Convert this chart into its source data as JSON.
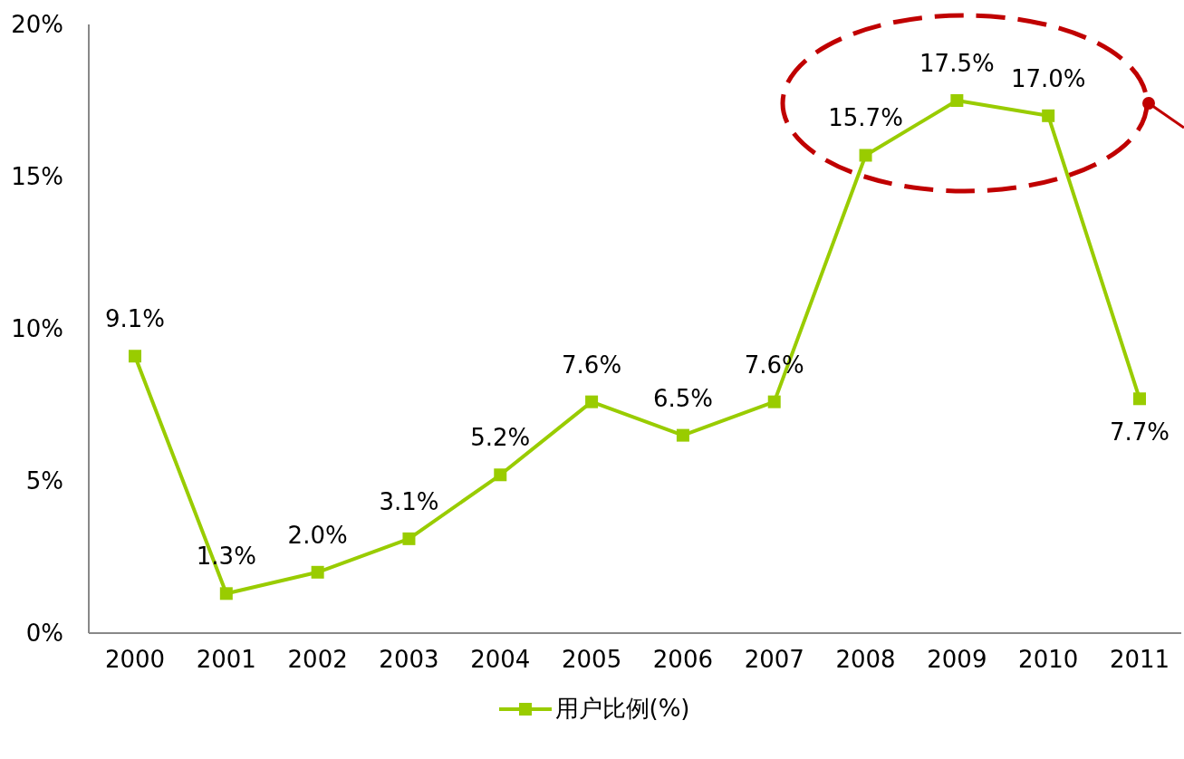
{
  "chart_data": {
    "type": "line",
    "categories": [
      "2000",
      "2001",
      "2002",
      "2003",
      "2004",
      "2005",
      "2006",
      "2007",
      "2008",
      "2009",
      "2010",
      "2011"
    ],
    "series": [
      {
        "name": "用户比例(%)",
        "color": "#99cc00",
        "values": [
          9.1,
          1.3,
          2.0,
          3.1,
          5.2,
          7.6,
          6.5,
          7.6,
          15.7,
          17.5,
          17.0,
          7.7
        ],
        "value_labels": [
          "9.1%",
          "1.3%",
          "2.0%",
          "3.1%",
          "5.2%",
          "7.6%",
          "6.5%",
          "7.6%",
          "15.7%",
          "17.5%",
          "17.0%",
          "7.7%"
        ]
      }
    ],
    "ylim": [
      0,
      20
    ],
    "yticks": [
      {
        "value": 0,
        "label": "0%"
      },
      {
        "value": 5,
        "label": "5%"
      },
      {
        "value": 10,
        "label": "10%"
      },
      {
        "value": 15,
        "label": "15%"
      },
      {
        "value": 20,
        "label": "20%"
      }
    ],
    "grid": false,
    "legend": "bottom",
    "marker": "square",
    "line_style": "solid"
  }
}
